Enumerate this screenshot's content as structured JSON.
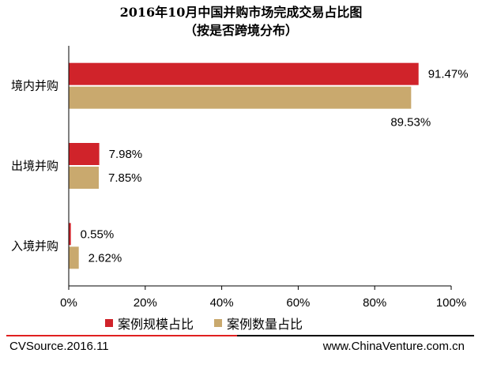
{
  "title": {
    "line1": "2016年10月中国并购市场完成交易占比图",
    "line2": "（按是否跨境分布）"
  },
  "colors": {
    "series1": "#d0232a",
    "series2": "#c9a96e",
    "axis": "#000000",
    "footer_red": "#e02020",
    "footer_black": "#000000"
  },
  "chart_data": {
    "type": "bar",
    "orientation": "horizontal",
    "categories": [
      "境内并购",
      "出境并购",
      "入境并购"
    ],
    "series": [
      {
        "name": "案例规模占比",
        "values": [
          91.47,
          7.98,
          0.55
        ],
        "labels": [
          "91.47%",
          "7.98%",
          "0.55%"
        ]
      },
      {
        "name": "案例数量占比",
        "values": [
          89.53,
          7.85,
          2.62
        ],
        "labels": [
          "89.53%",
          "7.85%",
          "2.62%"
        ]
      }
    ],
    "xlim": [
      0,
      100
    ],
    "xticks": [
      "0%",
      "20%",
      "40%",
      "60%",
      "80%",
      "100%"
    ],
    "legend": "bottom",
    "grid": false
  },
  "footer": {
    "source": "CVSource.2016.11",
    "site": "www.ChinaVenture.com.cn"
  }
}
